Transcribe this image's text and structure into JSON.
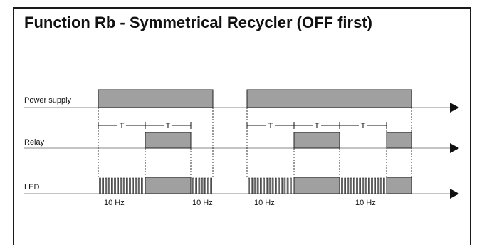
{
  "title": "Function Rb - Symmetrical Recycler (OFF first)",
  "rows": {
    "power": {
      "label": "Power supply"
    },
    "relay": {
      "label": "Relay"
    },
    "led": {
      "label": "LED"
    }
  },
  "interval_label": "T",
  "frequency_label": "10 Hz",
  "colors": {
    "fill": "#a0a0a0",
    "stroke": "#222222",
    "axis": "#888888",
    "arrow": "#111111",
    "dashed": "#333333",
    "frame": "#1a1a1a"
  }
}
